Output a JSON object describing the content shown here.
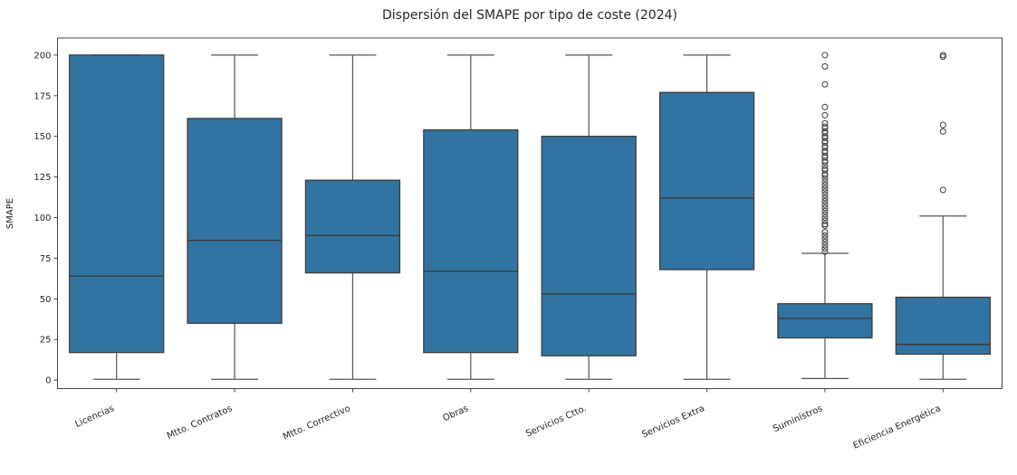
{
  "figure": {
    "title": "Dispersión del SMAPE por tipo de coste (2024)",
    "ylabel": "SMAPE"
  },
  "chart_data": {
    "type": "boxplot",
    "title": "Dispersión del SMAPE por tipo de coste (2024)",
    "xlabel": "",
    "ylabel": "SMAPE",
    "ylim": [
      -5.2,
      210.5
    ],
    "yticks": [
      0,
      25,
      50,
      75,
      100,
      125,
      150,
      175,
      200
    ],
    "grid": false,
    "legend": null,
    "categories": [
      "Licencias",
      "Mtto. Contratos",
      "Mtto. Correctivo",
      "Obras",
      "Servicios Ctto.",
      "Servicios Extra",
      "Suministros",
      "Eficiencia Energética"
    ],
    "boxes": [
      {
        "label": "Licencias",
        "whislo": 0.5,
        "q1": 17,
        "med": 64,
        "q3": 200,
        "whishi": 200,
        "outliers": []
      },
      {
        "label": "Mtto. Contratos",
        "whislo": 0.5,
        "q1": 35,
        "med": 86,
        "q3": 161,
        "whishi": 200,
        "outliers": []
      },
      {
        "label": "Mtto. Correctivo",
        "whislo": 0.5,
        "q1": 66,
        "med": 89,
        "q3": 123,
        "whishi": 200,
        "outliers": []
      },
      {
        "label": "Obras",
        "whislo": 0.5,
        "q1": 17,
        "med": 67,
        "q3": 154,
        "whishi": 200,
        "outliers": []
      },
      {
        "label": "Servicios Ctto.",
        "whislo": 0.5,
        "q1": 15,
        "med": 53,
        "q3": 150,
        "whishi": 200,
        "outliers": []
      },
      {
        "label": "Servicios Extra",
        "whislo": 0.5,
        "q1": 68,
        "med": 112,
        "q3": 177,
        "whishi": 200,
        "outliers": []
      },
      {
        "label": "Suministros",
        "whislo": 1,
        "q1": 26,
        "med": 38,
        "q3": 47,
        "whishi": 78,
        "outliers": [
          200,
          193,
          182,
          168,
          163,
          158,
          156,
          155,
          153,
          152,
          150,
          149,
          147,
          146,
          144,
          143,
          141,
          140,
          138,
          137,
          135,
          134,
          132,
          130,
          129,
          127,
          126,
          124,
          122,
          120,
          118,
          116,
          114,
          112,
          110,
          108,
          106,
          104,
          102,
          100,
          98,
          96,
          95,
          91,
          89,
          87,
          85,
          83,
          81,
          79
        ]
      },
      {
        "label": "Eficiencia Energética",
        "whislo": 0.5,
        "q1": 16,
        "med": 22,
        "q3": 51,
        "whishi": 101,
        "outliers": [
          200,
          199,
          157,
          153,
          117
        ]
      }
    ],
    "style": {
      "box_fill": "#3274a1",
      "box_edge": "#3d3d3d",
      "median_color": "#3a3a3a",
      "whisker_color": "#555555",
      "outlier_edge": "#4a4a4a",
      "spine_color": "#444444",
      "tick_color": "#444444",
      "text_color": "#262626",
      "background": "#ffffff"
    }
  }
}
